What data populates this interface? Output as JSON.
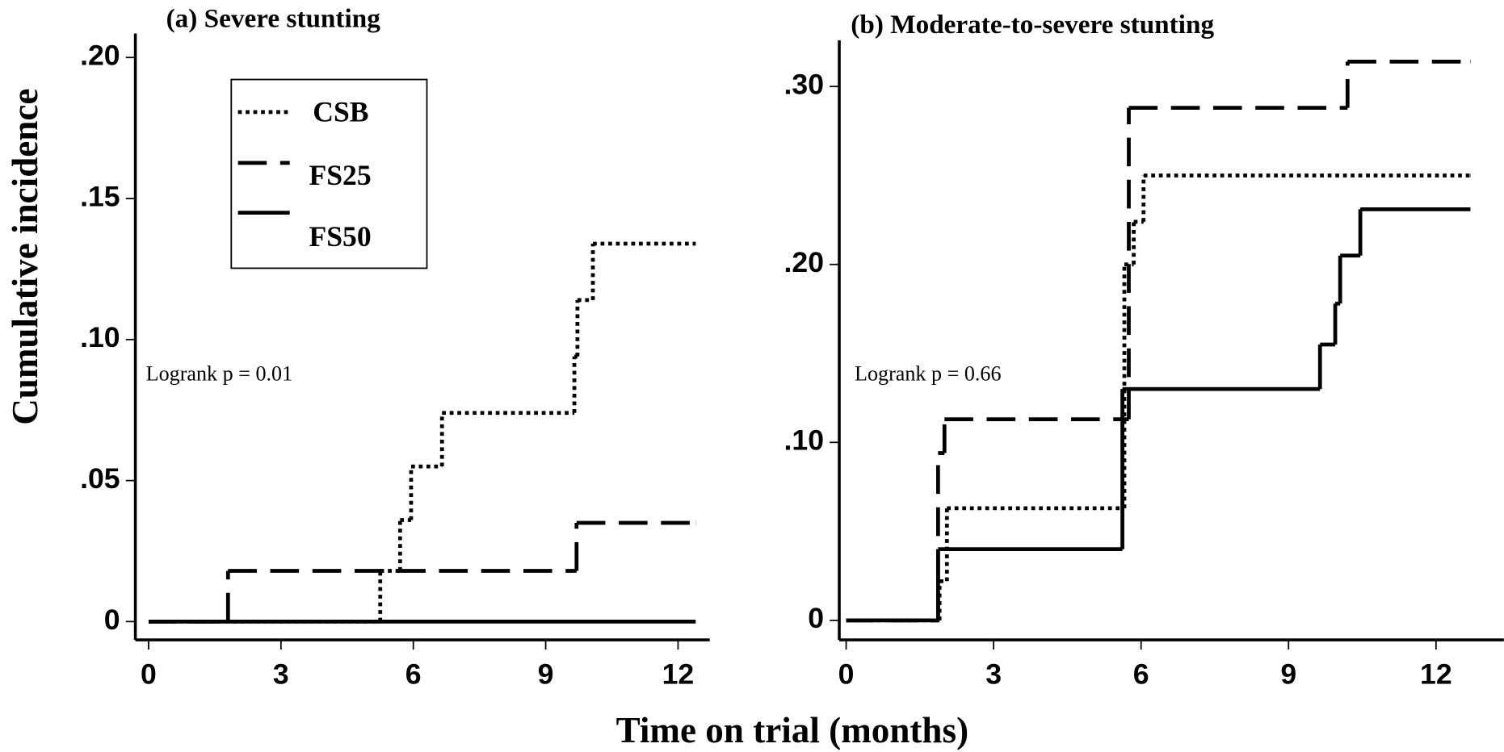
{
  "axis_labels": {
    "x": "Time on trial (months)",
    "y": "Cumulative incidence"
  },
  "chart_data": [
    {
      "type": "step",
      "title": "(a) Severe stunting",
      "annotation": "Logrank p = 0.01",
      "xlim": [
        -0.3,
        12.72
      ],
      "ylim": [
        -0.0065,
        0.2085
      ],
      "xticks": [
        0,
        3,
        6,
        9,
        12
      ],
      "yticks": [
        0,
        {
          "value": 0.05,
          "label": ".05"
        },
        {
          "value": 0.1,
          "label": ".10"
        },
        {
          "value": 0.15,
          "label": ".15"
        },
        {
          "value": 0.2,
          "label": ".20"
        }
      ],
      "legend": "upper-left",
      "series": [
        {
          "name": "CSB",
          "color": "#000000",
          "style": "dotted",
          "x": [
            0,
            5.25,
            5.7,
            5.95,
            6.65,
            9.65,
            9.72,
            10.07,
            12.4
          ],
          "values": [
            0,
            0.018,
            0.036,
            0.055,
            0.074,
            0.094,
            0.114,
            0.134,
            0.134
          ]
        },
        {
          "name": "FS25",
          "color": "#000000",
          "style": "dashed",
          "x": [
            0,
            1.8,
            9.7,
            12.4
          ],
          "values": [
            0,
            0.018,
            0.035,
            0.035
          ]
        },
        {
          "name": "FS50",
          "color": "#000000",
          "style": "solid",
          "x": [
            0,
            12.4
          ],
          "values": [
            0,
            0
          ]
        }
      ]
    },
    {
      "type": "step",
      "title": "(b) Moderate-to-severe stunting",
      "annotation": "Logrank p = 0.66",
      "xlim": [
        -0.14,
        13.38
      ],
      "ylim": [
        -0.011,
        0.326
      ],
      "xticks": [
        0,
        3,
        6,
        9,
        12
      ],
      "yticks": [
        0,
        {
          "value": 0.1,
          "label": ".10"
        },
        {
          "value": 0.2,
          "label": ".20"
        },
        {
          "value": 0.3,
          "label": ".30"
        }
      ],
      "series": [
        {
          "name": "CSB",
          "color": "#000000",
          "style": "dotted",
          "x": [
            0,
            1.9,
            2.05,
            5.66,
            5.85,
            6.05,
            12.7
          ],
          "values": [
            0,
            0.022,
            0.063,
            0.2,
            0.224,
            0.25,
            0.25
          ]
        },
        {
          "name": "FS25",
          "color": "#000000",
          "style": "dashed",
          "x": [
            0,
            1.87,
            2.0,
            5.75,
            10.2,
            12.7
          ],
          "values": [
            0,
            0.094,
            0.113,
            0.288,
            0.314,
            0.314
          ]
        },
        {
          "name": "FS50",
          "color": "#000000",
          "style": "solid",
          "x": [
            0,
            1.87,
            5.62,
            9.64,
            9.95,
            10.05,
            10.46,
            12.7
          ],
          "values": [
            0,
            0.04,
            0.13,
            0.155,
            0.178,
            0.205,
            0.231,
            0.231
          ]
        }
      ]
    }
  ]
}
